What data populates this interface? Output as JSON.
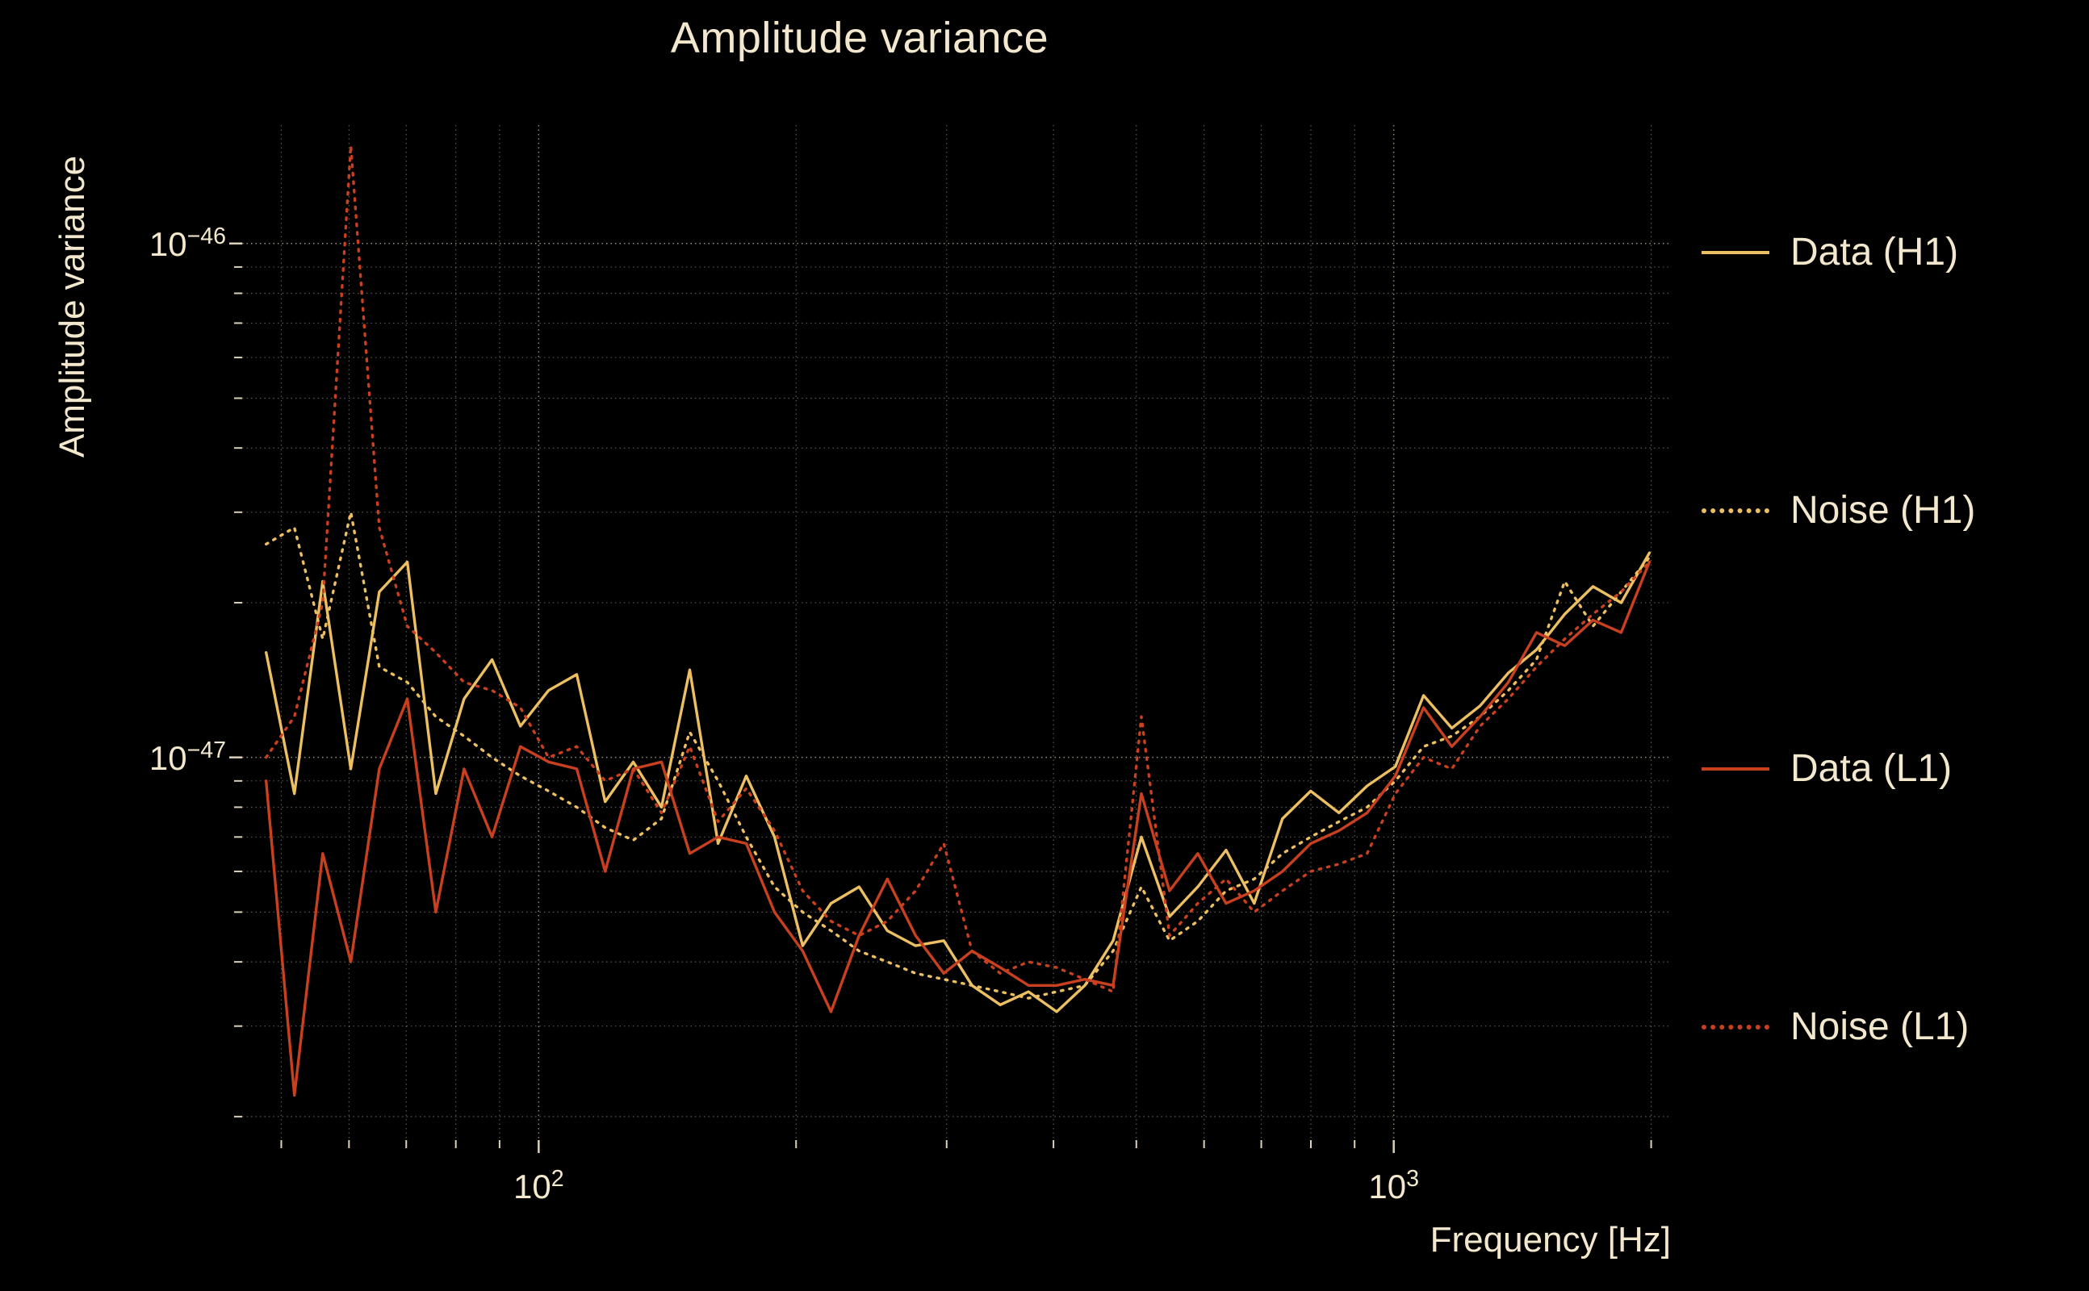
{
  "chart_data": {
    "type": "line",
    "title": "Amplitude variance",
    "xlabel": "Frequency [Hz]",
    "ylabel": "Amplitude variance",
    "x_scale": "log",
    "y_scale": "log",
    "xlim": [
      45,
      2100
    ],
    "ylim": [
      1.8e-48,
      1.7e-46
    ],
    "grid": true,
    "legend_position": "right-outside",
    "background_color": "#000000",
    "text_color": "#f3e8cd",
    "grid_color": "#f3e8cd",
    "x_ticks": [
      {
        "value": 100,
        "base": "10",
        "exp": "2"
      },
      {
        "value": 1000,
        "base": "10",
        "exp": "3"
      }
    ],
    "y_ticks": [
      {
        "value": 1e-46,
        "base": "10",
        "exp": "−46"
      },
      {
        "value": 1e-47,
        "base": "10",
        "exp": "−47"
      }
    ],
    "values_unit": 1e-48,
    "x": [
      48,
      51.8,
      55.9,
      60.3,
      65.1,
      70.2,
      75.8,
      81.8,
      88.2,
      95.2,
      102.7,
      110.8,
      119.6,
      129.0,
      139.2,
      150.2,
      162.1,
      174.9,
      188.7,
      203.6,
      219.7,
      237.0,
      255.7,
      275.9,
      297.7,
      321.2,
      346.6,
      374.0,
      403.5,
      435.3,
      469.7,
      506.8,
      546.8,
      590.0,
      636.6,
      686.8,
      741.1,
      799.6,
      862.8,
      930.9,
      1004.4,
      1083.7,
      1169.3,
      1261.6,
      1361.3,
      1468.8,
      1584.8,
      1710.0,
      1845.0,
      1990.7
    ],
    "series": [
      {
        "name": "Data (H1)",
        "color": "#ecbf62",
        "style": "solid",
        "values": [
          16,
          8.5,
          22,
          9.5,
          21,
          24,
          8.5,
          13,
          15.5,
          11.5,
          13.5,
          14.5,
          8.2,
          9.8,
          8.0,
          14.8,
          6.8,
          9.2,
          7.0,
          4.3,
          5.2,
          5.6,
          4.6,
          4.3,
          4.4,
          3.6,
          3.3,
          3.5,
          3.2,
          3.6,
          4.4,
          7.0,
          4.9,
          5.6,
          6.6,
          5.2,
          7.6,
          8.6,
          7.8,
          8.8,
          9.6,
          13.2,
          11.4,
          12.6,
          14.6,
          16.2,
          19.0,
          21.5,
          20.0,
          25.0
        ]
      },
      {
        "name": "Noise (H1)",
        "color": "#ecbf62",
        "style": "dotted",
        "values": [
          26,
          28,
          17,
          30,
          15,
          14,
          12,
          11,
          10,
          9.2,
          8.6,
          8.0,
          7.3,
          6.9,
          7.6,
          11.2,
          9.0,
          7.0,
          5.6,
          5.0,
          4.6,
          4.2,
          4.0,
          3.8,
          3.7,
          3.6,
          3.5,
          3.4,
          3.5,
          3.6,
          4.2,
          5.6,
          4.4,
          4.8,
          5.5,
          5.8,
          6.5,
          7.0,
          7.5,
          8.0,
          9.0,
          10.5,
          11.0,
          12.0,
          13.5,
          15.5,
          22.0,
          18.0,
          21.0,
          24.5
        ]
      },
      {
        "name": "Data (L1)",
        "color": "#c8401f",
        "style": "solid",
        "values": [
          9.0,
          2.2,
          6.5,
          4.0,
          9.5,
          13.0,
          5.0,
          9.5,
          7.0,
          10.5,
          9.8,
          9.5,
          6.0,
          9.5,
          9.8,
          6.5,
          7.0,
          6.8,
          5.0,
          4.2,
          3.2,
          4.5,
          5.8,
          4.5,
          3.8,
          4.2,
          3.9,
          3.6,
          3.6,
          3.7,
          3.6,
          8.5,
          5.5,
          6.5,
          5.2,
          5.5,
          6.0,
          6.8,
          7.2,
          7.8,
          9.2,
          12.5,
          10.5,
          12.0,
          14.0,
          17.5,
          16.5,
          18.5,
          17.5,
          24.0
        ]
      },
      {
        "name": "Noise (L1)",
        "color": "#c8401f",
        "style": "dotted",
        "values": [
          10,
          12,
          20,
          155,
          28,
          18,
          16,
          14,
          13.5,
          12.5,
          10.0,
          10.5,
          9.0,
          9.5,
          7.8,
          10.5,
          7.5,
          8.7,
          7.2,
          5.5,
          4.8,
          4.5,
          4.8,
          5.5,
          6.8,
          4.2,
          3.8,
          4.0,
          3.9,
          3.7,
          3.5,
          12.0,
          4.5,
          5.2,
          5.8,
          5.0,
          5.5,
          6.0,
          6.2,
          6.5,
          8.5,
          10.0,
          9.5,
          11.5,
          13.0,
          15.0,
          17.0,
          19.0,
          21.0,
          24.0
        ]
      }
    ]
  }
}
